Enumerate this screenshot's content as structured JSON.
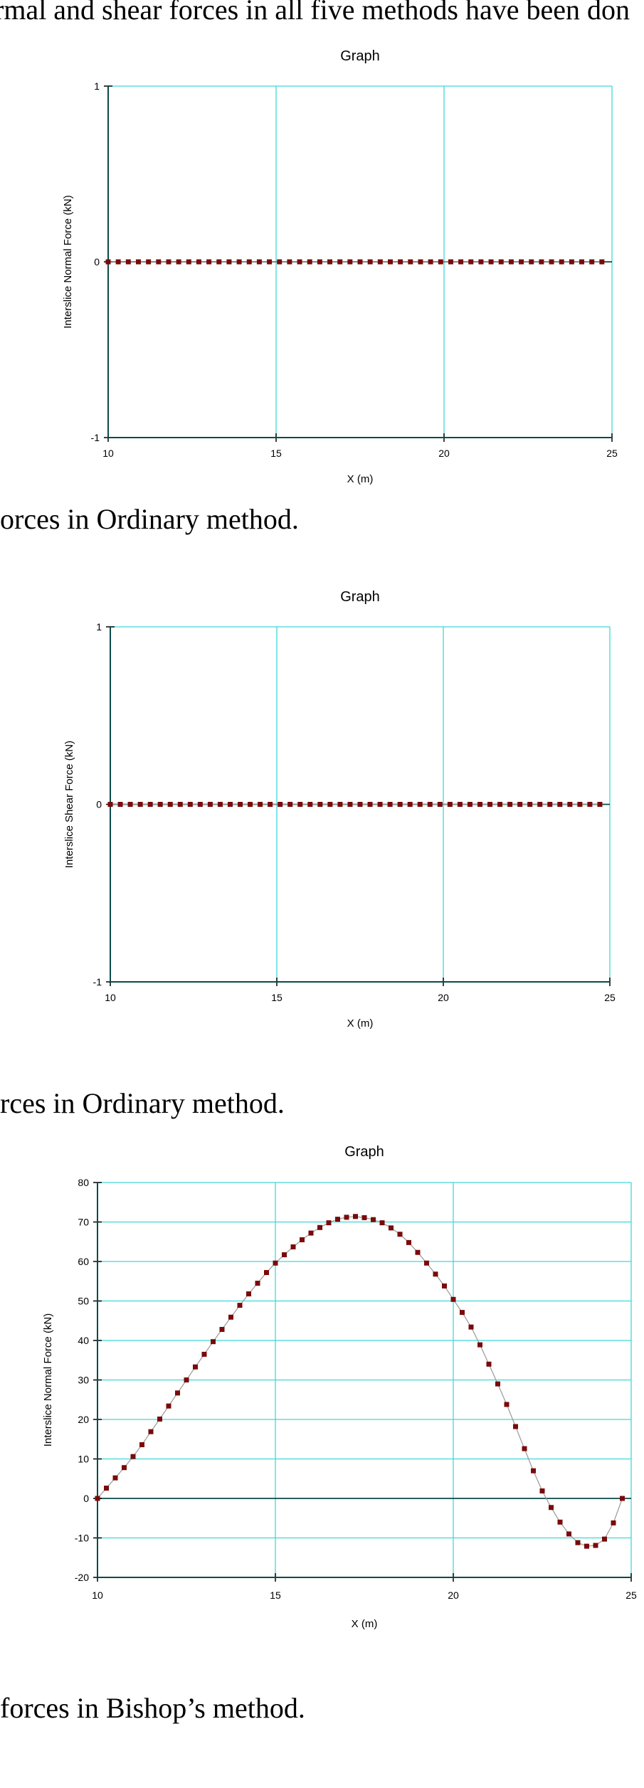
{
  "document": {
    "line_top": "rmal and shear forces in all five methods have been don",
    "caption_1": "orces in Ordinary method.",
    "caption_2": "rces in Ordinary method.",
    "caption_3": "forces in Bishop’s method."
  },
  "colors": {
    "grid": "#40d8d8",
    "axis": "#0a4a4a",
    "marker": "#7a0a0a",
    "line": "#999999"
  },
  "chart_data": [
    {
      "type": "line",
      "title": "Graph",
      "xlabel": "X (m)",
      "ylabel": "Interslice Normal Force (kN)",
      "xlim": [
        10,
        25
      ],
      "ylim": [
        -1,
        1
      ],
      "xticks": [
        "10",
        "15",
        "20",
        "25"
      ],
      "yticks": [
        "-1",
        "0",
        "1"
      ],
      "series": [
        {
          "x": [
            10.0,
            10.3,
            10.6,
            10.9,
            11.2,
            11.5,
            11.8,
            12.1,
            12.4,
            12.7,
            13.0,
            13.3,
            13.6,
            13.9,
            14.2,
            14.5,
            14.8,
            15.1,
            15.4,
            15.7,
            16.0,
            16.3,
            16.6,
            16.9,
            17.2,
            17.5,
            17.8,
            18.1,
            18.4,
            18.7,
            19.0,
            19.3,
            19.6,
            19.9,
            20.2,
            20.5,
            20.8,
            21.1,
            21.4,
            21.7,
            22.0,
            22.3,
            22.6,
            22.9,
            23.2,
            23.5,
            23.8,
            24.1,
            24.4,
            24.7
          ],
          "y": [
            0,
            0,
            0,
            0,
            0,
            0,
            0,
            0,
            0,
            0,
            0,
            0,
            0,
            0,
            0,
            0,
            0,
            0,
            0,
            0,
            0,
            0,
            0,
            0,
            0,
            0,
            0,
            0,
            0,
            0,
            0,
            0,
            0,
            0,
            0,
            0,
            0,
            0,
            0,
            0,
            0,
            0,
            0,
            0,
            0,
            0,
            0,
            0,
            0,
            0
          ]
        }
      ]
    },
    {
      "type": "line",
      "title": "Graph",
      "xlabel": "X (m)",
      "ylabel": "Interslice Shear Force (kN)",
      "xlim": [
        10,
        25
      ],
      "ylim": [
        -1,
        1
      ],
      "xticks": [
        "10",
        "15",
        "20",
        "25"
      ],
      "yticks": [
        "-1",
        "0",
        "1"
      ],
      "series": [
        {
          "x": [
            10.0,
            10.3,
            10.6,
            10.9,
            11.2,
            11.5,
            11.8,
            12.1,
            12.4,
            12.7,
            13.0,
            13.3,
            13.6,
            13.9,
            14.2,
            14.5,
            14.8,
            15.1,
            15.4,
            15.7,
            16.0,
            16.3,
            16.6,
            16.9,
            17.2,
            17.5,
            17.8,
            18.1,
            18.4,
            18.7,
            19.0,
            19.3,
            19.6,
            19.9,
            20.2,
            20.5,
            20.8,
            21.1,
            21.4,
            21.7,
            22.0,
            22.3,
            22.6,
            22.9,
            23.2,
            23.5,
            23.8,
            24.1,
            24.4,
            24.7
          ],
          "y": [
            0,
            0,
            0,
            0,
            0,
            0,
            0,
            0,
            0,
            0,
            0,
            0,
            0,
            0,
            0,
            0,
            0,
            0,
            0,
            0,
            0,
            0,
            0,
            0,
            0,
            0,
            0,
            0,
            0,
            0,
            0,
            0,
            0,
            0,
            0,
            0,
            0,
            0,
            0,
            0,
            0,
            0,
            0,
            0,
            0,
            0,
            0,
            0,
            0,
            0
          ]
        }
      ]
    },
    {
      "type": "line",
      "title": "Graph",
      "xlabel": "X (m)",
      "ylabel": "Interslice Normal Force (kN)",
      "xlim": [
        10,
        25
      ],
      "ylim": [
        -20,
        80
      ],
      "xticks": [
        "10",
        "15",
        "20",
        "25"
      ],
      "yticks": [
        "-20",
        "-10",
        "0",
        "10",
        "20",
        "30",
        "40",
        "50",
        "60",
        "70",
        "80"
      ],
      "series": [
        {
          "x": [
            10.0,
            10.25,
            10.5,
            10.75,
            11.0,
            11.25,
            11.5,
            11.75,
            12.0,
            12.25,
            12.5,
            12.75,
            13.0,
            13.25,
            13.5,
            13.75,
            14.0,
            14.25,
            14.5,
            14.75,
            15.0,
            15.25,
            15.5,
            15.75,
            16.0,
            16.25,
            16.5,
            16.75,
            17.0,
            17.25,
            17.5,
            17.75,
            18.0,
            18.25,
            18.5,
            18.75,
            19.0,
            19.25,
            19.5,
            19.75,
            20.0,
            20.25,
            20.5,
            20.75,
            21.0,
            21.25,
            21.5,
            21.75,
            22.0,
            22.25,
            22.5,
            22.75,
            23.0,
            23.25,
            23.5,
            23.75,
            24.0,
            24.25,
            24.5,
            24.75
          ],
          "y": [
            0,
            2.6,
            5.2,
            7.8,
            10.6,
            13.6,
            16.9,
            20.1,
            23.4,
            26.7,
            30.0,
            33.3,
            36.5,
            39.7,
            42.8,
            45.9,
            48.9,
            51.8,
            54.5,
            57.2,
            59.6,
            61.7,
            63.7,
            65.5,
            67.2,
            68.6,
            69.8,
            70.7,
            71.2,
            71.4,
            71.1,
            70.6,
            69.8,
            68.5,
            66.9,
            64.8,
            62.3,
            59.6,
            56.8,
            53.8,
            50.4,
            47.1,
            43.4,
            38.9,
            34.0,
            29.0,
            23.8,
            18.2,
            12.6,
            7.0,
            1.9,
            -2.3,
            -6.0,
            -9.0,
            -11.2,
            -12.1,
            -11.9,
            -10.3,
            -6.2,
            0
          ]
        }
      ]
    }
  ]
}
